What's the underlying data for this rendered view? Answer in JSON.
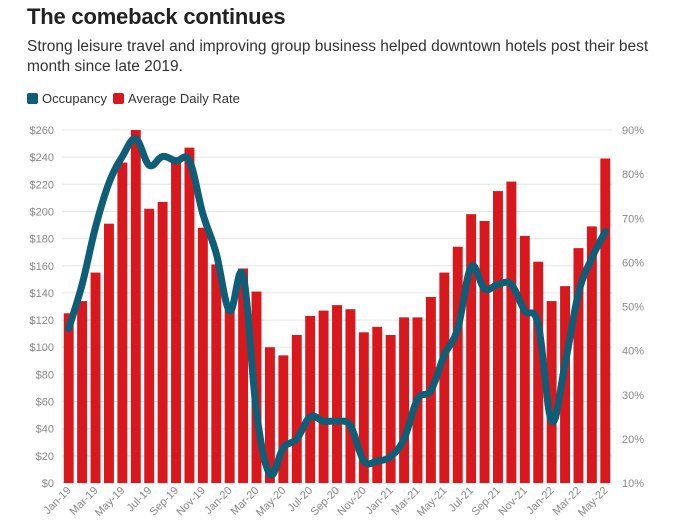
{
  "title": "The comeback continues",
  "subtitle": "Strong leisure travel and improving group business helped downtown hotels post their best month since late 2019.",
  "colors": {
    "occupancy": "#0f5e78",
    "adr": "#d8181d",
    "grid": "#e6e6e6",
    "text": "#888888"
  },
  "chart_data": {
    "type": "bar",
    "categories": [
      "Jan-19",
      "Feb-19",
      "Mar-19",
      "Apr-19",
      "May-19",
      "Jun-19",
      "Jul-19",
      "Aug-19",
      "Sep-19",
      "Oct-19",
      "Nov-19",
      "Dec-19",
      "Jan-20",
      "Feb-20",
      "Mar-20",
      "Apr-20",
      "May-20",
      "Jun-20",
      "Jul-20",
      "Aug-20",
      "Sep-20",
      "Oct-20",
      "Nov-20",
      "Dec-20",
      "Jan-21",
      "Feb-21",
      "Mar-21",
      "Apr-21",
      "May-21",
      "Jun-21",
      "Jul-21",
      "Aug-21",
      "Sep-21",
      "Oct-21",
      "Nov-21",
      "Dec-21",
      "Jan-22",
      "Feb-22",
      "Mar-22",
      "Apr-22",
      "May-22"
    ],
    "x_tick_labels": [
      "Jan-19",
      "Mar-19",
      "May-19",
      "Jul-19",
      "Sep-19",
      "Nov-19",
      "Jan-20",
      "Mar-20",
      "May-20",
      "Jul-20",
      "Sep-20",
      "Nov-20",
      "Jan-21",
      "Mar-21",
      "May-21",
      "Jul-21",
      "Sep-21",
      "Nov-21",
      "Jan-22",
      "Mar-22",
      "May-22"
    ],
    "series": [
      {
        "name": "Average Daily Rate",
        "type": "bar",
        "axis": "left",
        "values": [
          125,
          134,
          155,
          191,
          236,
          260,
          202,
          207,
          240,
          247,
          188,
          161,
          128,
          158,
          141,
          100,
          94,
          109,
          123,
          127,
          131,
          128,
          111,
          115,
          109,
          122,
          122,
          137,
          155,
          174,
          198,
          193,
          215,
          222,
          182,
          163,
          134,
          145,
          173,
          189,
          239
        ]
      },
      {
        "name": "Occupancy",
        "type": "line",
        "axis": "right",
        "values": [
          45,
          55,
          68,
          78,
          84,
          88,
          82,
          84,
          83,
          83,
          71,
          62,
          49,
          57,
          26,
          12,
          18,
          20,
          25,
          24,
          24,
          23,
          15,
          15,
          16,
          20,
          29,
          31,
          39,
          45,
          59,
          54,
          55,
          55,
          49,
          46,
          24,
          37,
          53,
          61,
          67
        ]
      }
    ],
    "ylabel_left": "",
    "ylim_left": [
      0,
      260
    ],
    "yticks_left": [
      "$0",
      "$20",
      "$40",
      "$60",
      "$80",
      "$100",
      "$120",
      "$140",
      "$160",
      "$180",
      "$200",
      "$220",
      "$240",
      "$260"
    ],
    "ylabel_right": "",
    "ylim_right": [
      10,
      90
    ],
    "yticks_right": [
      "10%",
      "20%",
      "30%",
      "40%",
      "50%",
      "60%",
      "70%",
      "80%",
      "90%"
    ],
    "grid": true,
    "legend": "top-left"
  }
}
